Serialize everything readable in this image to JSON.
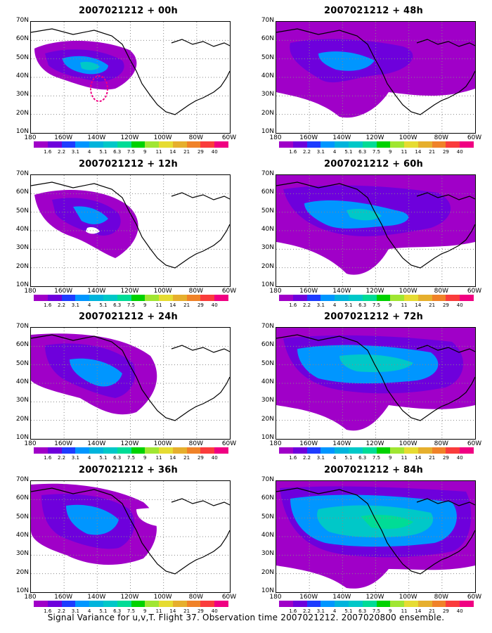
{
  "panels": [
    {
      "title": "2007021212 + 00h"
    },
    {
      "title": "2007021212 + 48h"
    },
    {
      "title": "2007021212 + 12h"
    },
    {
      "title": "2007021212 + 60h"
    },
    {
      "title": "2007021212 + 24h"
    },
    {
      "title": "2007021212 + 72h"
    },
    {
      "title": "2007021212 + 36h"
    },
    {
      "title": "2007021212 + 84h"
    }
  ],
  "lat_labels": [
    "70N",
    "60N",
    "50N",
    "40N",
    "30N",
    "20N",
    "10N"
  ],
  "lon_labels": [
    "180",
    "160W",
    "140W",
    "120W",
    "100W",
    "80W",
    "60W"
  ],
  "colorbar_labels": [
    "1.6",
    "2.2",
    "3.1",
    "4",
    "5.1",
    "6.3",
    "7.5",
    "9",
    "11",
    "14",
    "21",
    "29",
    "40"
  ],
  "colorbar_colors": [
    "#a000c8",
    "#6e00dc",
    "#1e3cff",
    "#0096ff",
    "#00b4dc",
    "#00c8c8",
    "#00dc96",
    "#00d200",
    "#a0e632",
    "#e6dc32",
    "#e6af2d",
    "#f08228",
    "#fa3c3c",
    "#f00082"
  ],
  "caption": "Signal Variance for u,v,T. Flight 37. Observation time 2007021212. 2007020800 ensemble."
}
